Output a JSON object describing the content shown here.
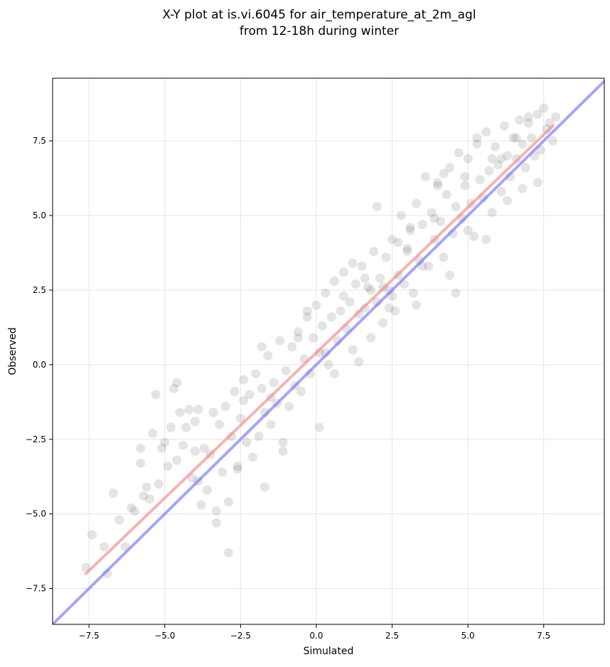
{
  "chart_data": {
    "type": "scatter",
    "title": "X-Y plot at is.vi.6045 for air_temperature_at_2m_agl",
    "subtitle": "from 12-18h during winter",
    "xlabel": "Simulated",
    "ylabel": "Observed",
    "xlim": [
      -8.7,
      9.5
    ],
    "ylim": [
      -8.7,
      9.6
    ],
    "xticks": [
      -7.5,
      -5.0,
      -2.5,
      0.0,
      2.5,
      5.0,
      7.5
    ],
    "xtick_labels": [
      "−7.5",
      "−5.0",
      "−2.5",
      "0.0",
      "2.5",
      "5.0",
      "7.5"
    ],
    "yticks": [
      -7.5,
      -5.0,
      -2.5,
      0.0,
      2.5,
      5.0,
      7.5
    ],
    "ytick_labels": [
      "−7.5",
      "−5.0",
      "−2.5",
      "0.0",
      "2.5",
      "5.0",
      "7.5"
    ],
    "grid": true,
    "legend": false,
    "colors": {
      "points": "#555555",
      "regression_line": "#f08080",
      "identity_line": "#6a6af0"
    },
    "reference_lines": [
      {
        "type": "identity",
        "x": [
          -8.7,
          9.5
        ],
        "y": [
          -8.7,
          9.5
        ]
      },
      {
        "type": "regression",
        "x": [
          -7.6,
          7.8
        ],
        "y": [
          -7.0,
          8.0
        ]
      }
    ],
    "points": {
      "x": [
        -7.6,
        -7.4,
        -7.0,
        -6.9,
        -6.7,
        -6.5,
        -6.3,
        -6.1,
        -6.0,
        -5.8,
        -5.8,
        -5.7,
        -5.6,
        -5.5,
        -5.4,
        -5.3,
        -5.2,
        -5.1,
        -5.0,
        -4.9,
        -4.8,
        -4.7,
        -4.6,
        -4.5,
        -4.4,
        -4.3,
        -4.2,
        -4.1,
        -4.0,
        -3.9,
        -3.8,
        -3.7,
        -3.6,
        -3.5,
        -3.4,
        -3.3,
        -3.2,
        -3.1,
        -3.0,
        -2.9,
        -2.8,
        -2.7,
        -2.6,
        -2.5,
        -2.4,
        -2.3,
        -2.2,
        -2.1,
        -2.0,
        -1.9,
        -1.8,
        -1.7,
        -1.6,
        -1.5,
        -1.4,
        -1.3,
        -1.2,
        -1.1,
        -1.0,
        -0.9,
        -0.8,
        -0.7,
        -0.6,
        -0.5,
        -0.4,
        -0.3,
        -0.2,
        -0.1,
        0.0,
        0.1,
        0.2,
        0.3,
        0.4,
        0.5,
        0.6,
        0.7,
        0.8,
        0.9,
        1.0,
        1.1,
        1.2,
        1.3,
        1.4,
        1.5,
        1.6,
        1.7,
        1.8,
        1.9,
        2.0,
        2.1,
        2.2,
        2.3,
        2.4,
        2.5,
        2.6,
        2.7,
        2.8,
        2.9,
        3.0,
        3.1,
        3.2,
        3.3,
        3.4,
        3.5,
        3.6,
        3.7,
        3.8,
        3.9,
        4.0,
        4.1,
        4.2,
        4.3,
        4.4,
        4.5,
        4.6,
        4.7,
        4.8,
        4.9,
        5.0,
        5.1,
        5.2,
        5.3,
        5.4,
        5.5,
        5.6,
        5.7,
        5.8,
        5.9,
        6.0,
        6.1,
        6.2,
        6.3,
        6.4,
        6.5,
        6.6,
        6.7,
        6.8,
        6.9,
        7.0,
        7.1,
        7.2,
        7.3,
        7.4,
        7.5,
        7.6,
        7.7,
        7.8,
        7.9,
        -4.6,
        -4.0,
        -3.3,
        -2.4,
        -1.8,
        -1.1,
        -0.6,
        0.3,
        0.9,
        1.4,
        2.2,
        2.7,
        3.3,
        3.9,
        4.4,
        4.9,
        5.6,
        6.1,
        6.8,
        7.3,
        -3.9,
        -2.6,
        -1.5,
        -0.3,
        0.6,
        1.6,
        2.4,
        3.5,
        4.6,
        5.8,
        6.6,
        -2.9,
        -1.7,
        0.1,
        1.2,
        2.0,
        3.0,
        4.2,
        5.3,
        6.3,
        7.0,
        1.8,
        2.5,
        3.1,
        4.0,
        5.0
      ],
      "y": [
        -6.8,
        -5.7,
        -6.1,
        -7.0,
        -4.3,
        -5.2,
        -6.1,
        -4.8,
        -4.9,
        -3.3,
        -2.8,
        -4.4,
        -4.1,
        -4.5,
        -2.3,
        -1.0,
        -4.0,
        -2.8,
        -2.6,
        -3.4,
        -2.1,
        -0.8,
        -3.2,
        -1.6,
        -2.7,
        -2.1,
        -1.5,
        -3.8,
        -2.9,
        -1.5,
        -4.7,
        -2.8,
        -4.2,
        -3.0,
        -1.6,
        -5.3,
        -2.0,
        -3.6,
        -1.4,
        -4.6,
        -2.4,
        -0.9,
        -3.5,
        -1.8,
        -0.5,
        -2.6,
        -1.0,
        -3.1,
        -0.3,
        -2.4,
        -0.8,
        -1.6,
        0.3,
        -2.0,
        -0.6,
        -1.3,
        0.8,
        -2.9,
        -0.2,
        -1.4,
        0.6,
        -0.7,
        1.1,
        -0.9,
        0.2,
        1.6,
        -0.3,
        0.9,
        2.0,
        0.4,
        1.3,
        2.4,
        0.0,
        1.6,
        2.8,
        0.8,
        1.8,
        3.1,
        1.2,
        2.1,
        0.5,
        2.7,
        1.7,
        3.3,
        1.9,
        2.6,
        0.9,
        3.8,
        2.1,
        2.9,
        1.4,
        3.6,
        2.5,
        4.2,
        1.8,
        3.0,
        5.0,
        2.7,
        3.9,
        4.6,
        2.4,
        5.4,
        3.5,
        4.7,
        6.3,
        3.3,
        5.1,
        4.2,
        6.1,
        4.8,
        3.6,
        5.7,
        6.6,
        4.4,
        5.3,
        7.1,
        4.9,
        6.0,
        6.9,
        5.4,
        4.3,
        7.4,
        6.2,
        5.6,
        7.8,
        6.5,
        5.1,
        7.3,
        6.7,
        5.8,
        8.0,
        7.0,
        6.3,
        7.6,
        6.9,
        8.2,
        7.4,
        6.6,
        8.3,
        7.6,
        7.0,
        8.4,
        7.2,
        8.6,
        7.9,
        8.1,
        7.5,
        8.3,
        -0.6,
        -1.9,
        -4.9,
        -1.2,
        0.6,
        -2.6,
        0.9,
        0.4,
        2.3,
        0.1,
        2.6,
        4.1,
        2.0,
        4.9,
        3.0,
        6.3,
        4.2,
        6.9,
        5.9,
        6.1,
        -3.9,
        -3.4,
        -1.1,
        1.8,
        -0.3,
        2.9,
        1.9,
        3.3,
        2.4,
        6.9,
        7.6,
        -6.3,
        -4.1,
        -2.1,
        3.4,
        5.3,
        3.8,
        6.4,
        7.6,
        5.5,
        8.1,
        2.5,
        2.3,
        4.5,
        6.0,
        4.5
      ]
    }
  }
}
